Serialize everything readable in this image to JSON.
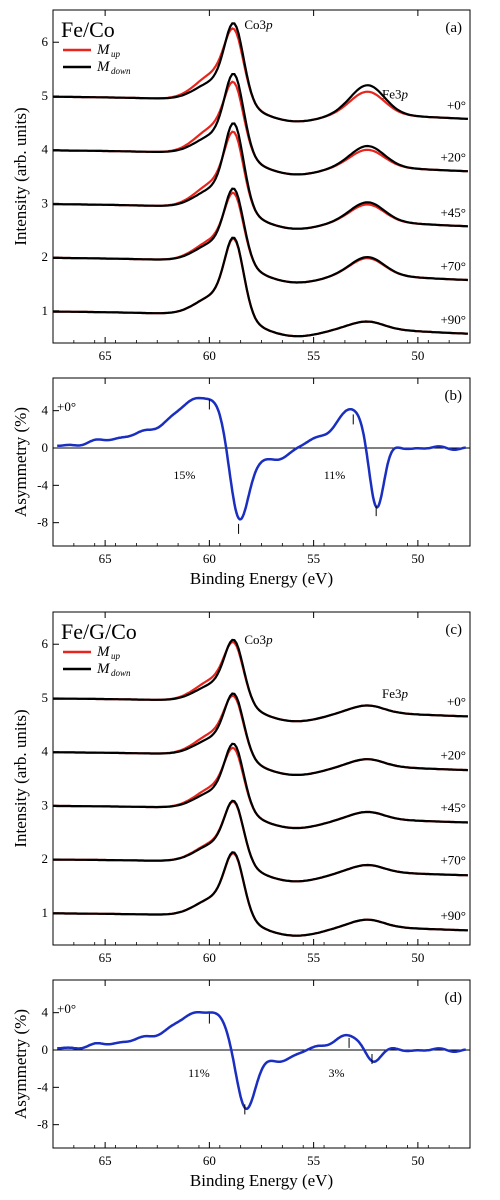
{
  "figure": {
    "xlabel": "Binding Energy (eV)",
    "intensity_ylabel": "Intensity (arb. units)",
    "asymmetry_ylabel": "Asymmetry (%)"
  },
  "colors": {
    "up": "#e8241c",
    "down": "#000000",
    "asym": "#1a2fbf"
  },
  "chart_data": [
    {
      "type": "line",
      "panel_label": "(a)",
      "sample": "Fe/Co",
      "legend": [
        {
          "main": "M",
          "sub": "up"
        },
        {
          "main": "M",
          "sub": "down"
        }
      ],
      "xlabel": "",
      "ylabel": "Intensity (arb. units)",
      "x_reversed": true,
      "xlim": [
        67.5,
        47.5
      ],
      "ylim": [
        0.4,
        6.6
      ],
      "xticks": [
        65,
        60,
        55,
        50
      ],
      "yticks": [
        1,
        2,
        3,
        4,
        5,
        6
      ],
      "peak_labels": [
        {
          "main": "Co3",
          "italic": "p",
          "x": 58.8,
          "y": 6.25
        },
        {
          "main": "Fe3",
          "italic": "p",
          "x": 52.2,
          "y": 4.95
        }
      ],
      "series": [
        {
          "angle": "+0°",
          "baseline": 5.0,
          "end": 4.55,
          "up": {
            "co_peak": 1.1,
            "fe_peak": 0.38,
            "shoulder": 0.85
          },
          "down": {
            "co_peak": 1.3,
            "fe_peak": 0.5,
            "shoulder": 0.6
          }
        },
        {
          "angle": "+20°",
          "baseline": 4.0,
          "end": 3.58,
          "up": {
            "co_peak": 1.1,
            "fe_peak": 0.28,
            "shoulder": 0.85
          },
          "down": {
            "co_peak": 1.35,
            "fe_peak": 0.35,
            "shoulder": 0.6
          }
        },
        {
          "angle": "+45°",
          "baseline": 3.0,
          "end": 2.55,
          "up": {
            "co_peak": 1.2,
            "fe_peak": 0.28,
            "shoulder": 0.8
          },
          "down": {
            "co_peak": 1.43,
            "fe_peak": 0.32,
            "shoulder": 0.62
          }
        },
        {
          "angle": "+70°",
          "baseline": 2.0,
          "end": 1.55,
          "up": {
            "co_peak": 1.1,
            "fe_peak": 0.28,
            "shoulder": 0.7
          },
          "down": {
            "co_peak": 1.22,
            "fe_peak": 0.3,
            "shoulder": 0.6
          }
        },
        {
          "angle": "+90°",
          "baseline": 1.0,
          "end": 0.55,
          "up": {
            "co_peak": 1.28,
            "fe_peak": 0.1,
            "shoulder": 0.62
          },
          "down": {
            "co_peak": 1.3,
            "fe_peak": 0.1,
            "shoulder": 0.62
          }
        }
      ]
    },
    {
      "type": "line",
      "panel_label": "(b)",
      "angle": "+0°",
      "xlabel": "Binding Energy (eV)",
      "ylabel": "Asymmetry (%)",
      "x_reversed": true,
      "xlim": [
        67.5,
        47.5
      ],
      "ylim": [
        -10.5,
        7.5
      ],
      "xticks": [
        65,
        60,
        55,
        50
      ],
      "yticks": [
        4,
        0,
        -4,
        -8
      ],
      "annotations": [
        {
          "text": "15%",
          "x": 61.2,
          "y": -3.3
        },
        {
          "text": "11%",
          "x": 54.0,
          "y": -3.3
        }
      ],
      "features": [
        {
          "x": 60.0,
          "y": 5.2
        },
        {
          "x": 58.6,
          "y": -9.2
        },
        {
          "x": 53.1,
          "y": 3.6
        },
        {
          "x": 52.0,
          "y": -7.3
        }
      ]
    },
    {
      "type": "line",
      "panel_label": "(c)",
      "sample": "Fe/G/Co",
      "legend": [
        {
          "main": "M",
          "sub": "up"
        },
        {
          "main": "M",
          "sub": "down"
        }
      ],
      "xlabel": "",
      "ylabel": "Intensity (arb. units)",
      "x_reversed": true,
      "xlim": [
        67.5,
        47.5
      ],
      "ylim": [
        0.4,
        6.6
      ],
      "xticks": [
        65,
        60,
        55,
        50
      ],
      "yticks": [
        1,
        2,
        3,
        4,
        5,
        6
      ],
      "peak_labels": [
        {
          "main": "Co3",
          "italic": "p",
          "x": 58.8,
          "y": 6.0
        },
        {
          "main": "Fe3",
          "italic": "p",
          "x": 52.2,
          "y": 5.0
        }
      ],
      "series": [
        {
          "angle": "+0°",
          "baseline": 5.0,
          "end": 4.65,
          "up": {
            "co_peak": 0.92,
            "fe_peak": 0.1,
            "shoulder": 0.7
          },
          "down": {
            "co_peak": 1.02,
            "fe_peak": 0.1,
            "shoulder": 0.55
          }
        },
        {
          "angle": "+20°",
          "baseline": 4.0,
          "end": 3.65,
          "up": {
            "co_peak": 0.92,
            "fe_peak": 0.1,
            "shoulder": 0.7
          },
          "down": {
            "co_peak": 1.02,
            "fe_peak": 0.1,
            "shoulder": 0.55
          }
        },
        {
          "angle": "+45°",
          "baseline": 3.0,
          "end": 2.68,
          "up": {
            "co_peak": 0.95,
            "fe_peak": 0.1,
            "shoulder": 0.68
          },
          "down": {
            "co_peak": 1.08,
            "fe_peak": 0.1,
            "shoulder": 0.55
          }
        },
        {
          "angle": "+70°",
          "baseline": 2.0,
          "end": 1.7,
          "up": {
            "co_peak": 0.97,
            "fe_peak": 0.1,
            "shoulder": 0.62
          },
          "down": {
            "co_peak": 1.0,
            "fe_peak": 0.1,
            "shoulder": 0.58
          }
        },
        {
          "angle": "+90°",
          "baseline": 1.0,
          "end": 0.67,
          "up": {
            "co_peak": 1.03,
            "fe_peak": 0.1,
            "shoulder": 0.58
          },
          "down": {
            "co_peak": 1.05,
            "fe_peak": 0.1,
            "shoulder": 0.58
          }
        }
      ]
    },
    {
      "type": "line",
      "panel_label": "(d)",
      "angle": "+0°",
      "xlabel": "Binding Energy (eV)",
      "ylabel": "Asymmetry (%)",
      "x_reversed": true,
      "xlim": [
        67.5,
        47.5
      ],
      "ylim": [
        -10.5,
        7.5
      ],
      "xticks": [
        65,
        60,
        55,
        50
      ],
      "yticks": [
        4,
        0,
        -4,
        -8
      ],
      "annotations": [
        {
          "text": "11%",
          "x": 60.5,
          "y": -2.9
        },
        {
          "text": "3%",
          "x": 53.9,
          "y": -2.9
        }
      ],
      "features": [
        {
          "x": 60.0,
          "y": 3.9
        },
        {
          "x": 58.3,
          "y": -6.9
        },
        {
          "x": 53.3,
          "y": 1.3
        },
        {
          "x": 52.2,
          "y": -1.5
        }
      ]
    }
  ]
}
